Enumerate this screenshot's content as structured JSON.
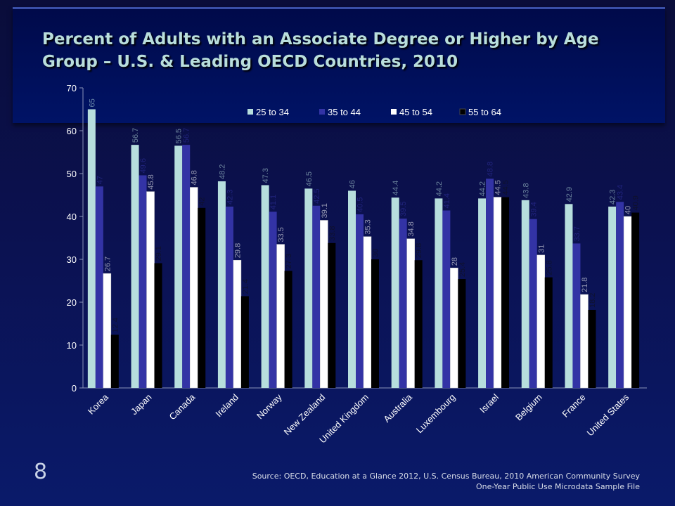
{
  "title": "Percent of Adults with an Associate Degree or Higher by Age Group – U.S. & Leading OECD Countries, 2010",
  "page_number": "8",
  "source": "Source: OECD, Education at a Glance 2012, U.S. Census Bureau, 2010 American Community Survey One-Year Public Use Microdata Sample File",
  "colors": {
    "s1": "#b7dedd",
    "s2": "#3333a5",
    "s3": "#ffffff",
    "s4": "#000000",
    "axis_text": "#ffffff"
  },
  "chart_data": {
    "type": "bar",
    "title": "Percent of Adults with an Associate Degree or Higher by Age Group – U.S. & Leading OECD Countries, 2010",
    "categories": [
      "Korea",
      "Japan",
      "Canada",
      "Ireland",
      "Norway",
      "New Zealand",
      "United Kingdom",
      "Australia",
      "Luxembourg",
      "Israel",
      "Belgium",
      "France",
      "United States"
    ],
    "series": [
      {
        "name": "25 to 34",
        "values": [
          65,
          56.7,
          56.5,
          48.2,
          47.3,
          46.5,
          46,
          44.4,
          44.2,
          44.2,
          43.8,
          42.9,
          42.3
        ]
      },
      {
        "name": "35 to 44",
        "values": [
          47,
          49.6,
          56.7,
          42.3,
          41.1,
          42.5,
          40.5,
          39.5,
          41.4,
          48.8,
          39.4,
          33.7,
          43.4
        ]
      },
      {
        "name": "45 to 54",
        "values": [
          26.7,
          45.8,
          46.8,
          29.8,
          33.5,
          39.1,
          35.3,
          34.8,
          28,
          44.5,
          31,
          21.8,
          40
        ]
      },
      {
        "name": "55 to 64",
        "values": [
          12.4,
          29.1,
          42,
          21.4,
          27.3,
          33.8,
          30,
          29.8,
          25.4,
          44.5,
          25.8,
          18.2,
          40.9
        ]
      }
    ],
    "ylim": [
      0,
      70
    ],
    "yticks": [
      0,
      10,
      20,
      30,
      40,
      50,
      60,
      70
    ],
    "legend": "top"
  }
}
